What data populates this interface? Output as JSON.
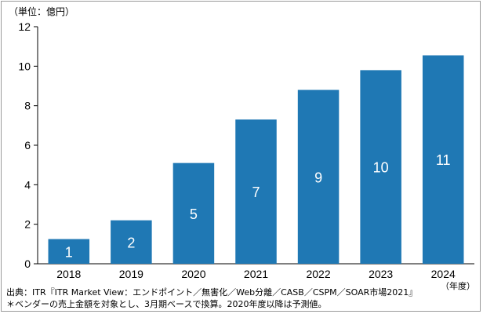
{
  "unit_label": "（単位：億円）",
  "year_unit": "（年度）",
  "source_line": "出典：ITR『ITR Market View：エンドポイント／無害化／Web分離／CASB／CSPM／SOAR市場2021』",
  "note_line": "＊ベンダーの売上金額を対象とし、3月期ベースで換算。2020年度以降は予測値。",
  "colors": {
    "bar": "#1f78b4",
    "label": "#ffffff",
    "axis": "#000000",
    "frame": "#9a9a9a"
  },
  "chart_data": {
    "type": "bar",
    "categories": [
      "2018",
      "2019",
      "2020",
      "2021",
      "2022",
      "2023",
      "2024"
    ],
    "values": [
      1.25,
      2.2,
      5.1,
      7.3,
      8.8,
      9.8,
      10.55
    ],
    "data_labels": [
      "1",
      "2",
      "5",
      "7",
      "9",
      "10",
      "11"
    ],
    "ylim": [
      0,
      12
    ],
    "yticks": [
      "0",
      "2",
      "4",
      "6",
      "8",
      "10",
      "12"
    ],
    "grid": false,
    "legend": "none"
  }
}
